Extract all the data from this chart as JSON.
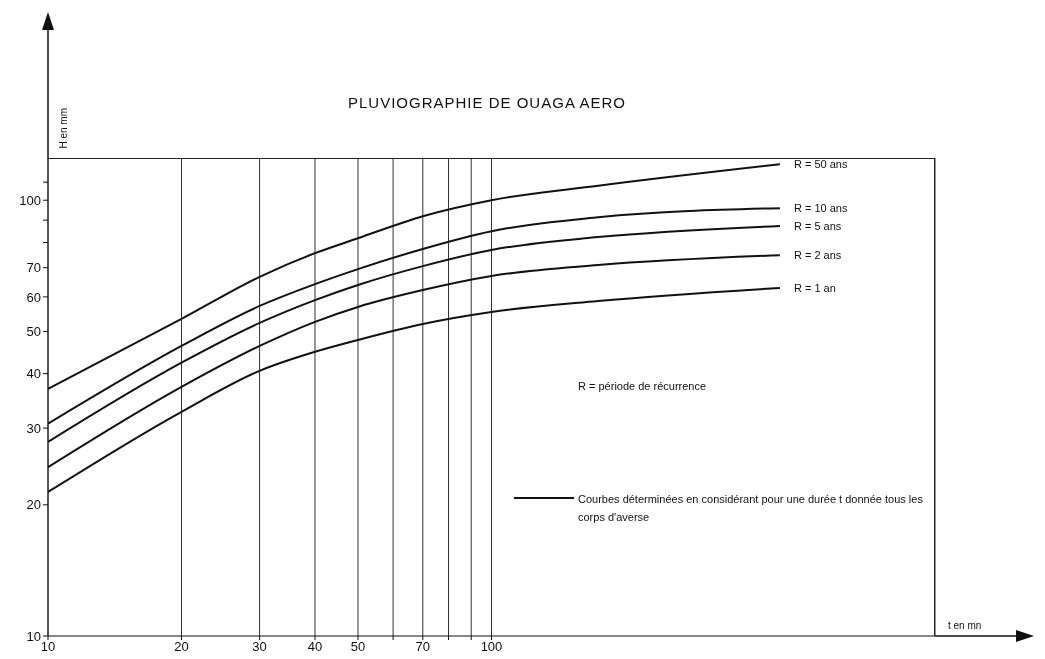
{
  "chart_data": {
    "type": "line",
    "title": "PLUVIOGRAPHIE DE OUAGA AERO",
    "xlabel": "t en mn",
    "ylabel": "H en mm",
    "x": [
      10,
      20,
      30,
      40,
      50,
      70,
      100,
      174,
      447
    ],
    "series": [
      {
        "name": "R = 50 ans",
        "color": "#111111",
        "values": [
          36.9,
          53.4,
          66.7,
          75.6,
          81.8,
          91.9,
          100,
          108,
          121
        ]
      },
      {
        "name": "R = 10 ans",
        "color": "#111111",
        "values": [
          30.7,
          46.3,
          57.2,
          64.2,
          69.5,
          77.3,
          84.9,
          91.4,
          95.9
        ]
      },
      {
        "name": "R = 5 ans",
        "color": "#111111",
        "values": [
          27.9,
          42.4,
          52.3,
          59.0,
          63.9,
          70.6,
          76.9,
          82.3,
          87.3
        ]
      },
      {
        "name": "R = 2 ans",
        "color": "#111111",
        "values": [
          24.4,
          37.3,
          46.3,
          52.6,
          56.9,
          62.2,
          67.0,
          71.0,
          74.8
        ]
      },
      {
        "name": "R = 1 an",
        "color": "#111111",
        "values": [
          21.4,
          32.7,
          40.6,
          44.9,
          47.8,
          52.0,
          55.4,
          58.7,
          62.9
        ]
      }
    ],
    "annotations": [
      "R = période de récurrence",
      "Courbes déterminées en considérant pour une durée t donnée tous les corps d'averse"
    ],
    "log": "xy",
    "xlim": [
      10,
      1000
    ],
    "ylim": [
      10,
      125
    ],
    "xticks": [
      10,
      20,
      30,
      40,
      50,
      {
        "value": 60,
        "label": null
      },
      70,
      {
        "value": 80,
        "label": null
      },
      {
        "value": 90,
        "label": null
      },
      100
    ],
    "yticks": [
      10,
      20,
      30,
      40,
      50,
      60,
      70,
      {
        "value": 80,
        "label": null
      },
      {
        "value": 90,
        "label": null
      },
      100,
      {
        "value": 110,
        "label": null
      }
    ],
    "grid": "x",
    "marker": "none",
    "line_style": "solid"
  }
}
